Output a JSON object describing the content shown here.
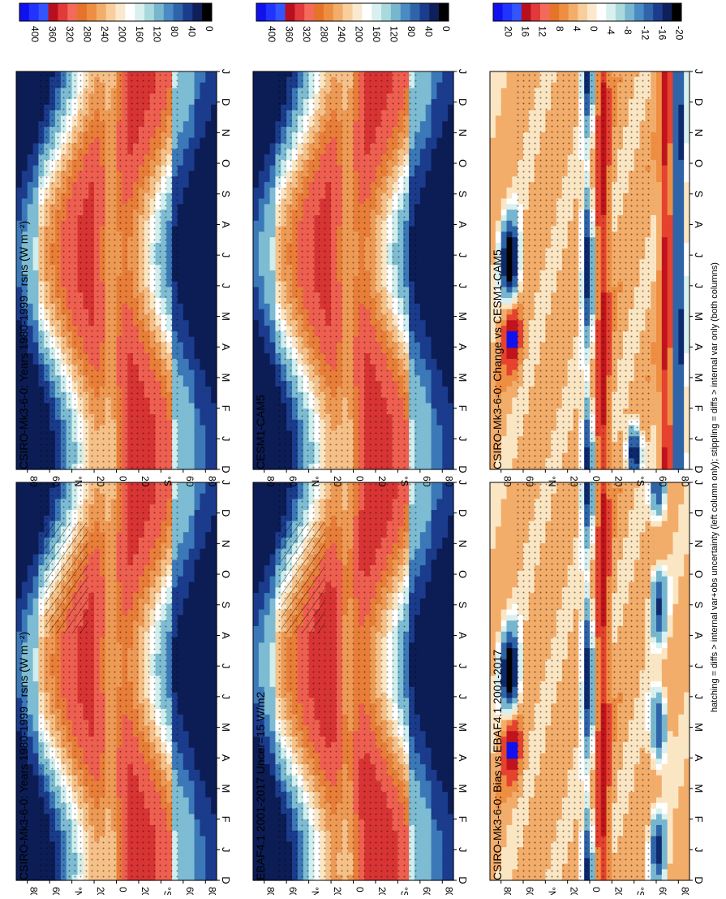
{
  "footer_note": "hatching = diffs > internal var+obs uncertainty (left column only); stippling = diffs > internal var only (both columns)",
  "months": [
    "J",
    "F",
    "M",
    "A",
    "M",
    "J",
    "J",
    "A",
    "S",
    "O",
    "N",
    "D",
    "J"
  ],
  "lat_ticks": [
    "80",
    "60",
    "°N",
    "20",
    "0",
    "20",
    "°S",
    "60",
    "80"
  ],
  "month_ticks": [
    "D",
    "J",
    "F",
    "M",
    "A",
    "M",
    "J",
    "J",
    "A",
    "S",
    "O",
    "N",
    "D",
    "J"
  ],
  "colors": {
    "abs_scale": [
      "#000000",
      "#0e1f5a",
      "#1b3b8c",
      "#2f64a8",
      "#4a8bc4",
      "#77b6cf",
      "#a9d9dc",
      "#d8f0ef",
      "#ffffff",
      "#fbe9cf",
      "#f8cf9c",
      "#f3ad6b",
      "#ee8e43",
      "#e5742a",
      "#f46a5a",
      "#e03a3a",
      "#b80f1e",
      "#3355ff",
      "#2133ff",
      "#1111ee"
    ],
    "diff_scale": [
      "#000000",
      "#0e1f5a",
      "#1b3b8c",
      "#2f64a8",
      "#4a8bc4",
      "#77b6cf",
      "#a9d9dc",
      "#d8f0ef",
      "#ffffff",
      "#fbe9cf",
      "#f8cf9c",
      "#f3ad6b",
      "#ee8e43",
      "#e5742a",
      "#f46a5a",
      "#e03a3a",
      "#b80f1e",
      "#3355ff",
      "#2133ff",
      "#1111ee"
    ]
  },
  "chart_data": [
    {
      "type": "heatmap",
      "panel": "top-left",
      "title": "CSIRO-Mk3-6-0: Years 1980-1999 : rsns (W m⁻²)",
      "xlabel": "",
      "ylabel": "",
      "colorbar_ticks": [
        "0",
        "40",
        "80",
        "120",
        "160",
        "200",
        "240",
        "280",
        "320",
        "360",
        "400"
      ]
    },
    {
      "type": "heatmap",
      "panel": "top-right",
      "title": "CSIRO-Mk3-6-0: Years 1980-1999 : rsns (W m⁻²)",
      "xlabel": "",
      "ylabel": "",
      "colorbar_ticks": [
        "0",
        "40",
        "80",
        "120",
        "160",
        "200",
        "240",
        "280",
        "320",
        "360",
        "400"
      ]
    },
    {
      "type": "heatmap",
      "panel": "middle-left",
      "title": "EBAF4.1 2001-2017 Uncer=15 W/m2",
      "xlabel": "",
      "ylabel": "",
      "colorbar_ticks": [
        "0",
        "40",
        "80",
        "120",
        "160",
        "200",
        "240",
        "280",
        "320",
        "360",
        "400"
      ]
    },
    {
      "type": "heatmap",
      "panel": "middle-right",
      "title": "CESM1-CAM5",
      "xlabel": "",
      "ylabel": "",
      "colorbar_ticks": [
        "0",
        "40",
        "80",
        "120",
        "160",
        "200",
        "240",
        "280",
        "320",
        "360",
        "400"
      ]
    },
    {
      "type": "heatmap",
      "panel": "bottom-left",
      "title": "CSIRO-Mk3-6-0: Bias vs EBAF4.1 2001-2017",
      "xlabel": "",
      "ylabel": "",
      "colorbar_ticks": [
        "-20",
        "-16",
        "-12",
        "-8",
        "-4",
        "0",
        "4",
        "8",
        "12",
        "16",
        "20"
      ]
    },
    {
      "type": "heatmap",
      "panel": "bottom-right",
      "title": "CSIRO-Mk3-6-0: Change vs CESM1-CAM5",
      "xlabel": "",
      "ylabel": "",
      "colorbar_ticks": [
        "-20",
        "-16",
        "-12",
        "-8",
        "-4",
        "0",
        "4",
        "8",
        "12",
        "16",
        "20"
      ]
    }
  ]
}
